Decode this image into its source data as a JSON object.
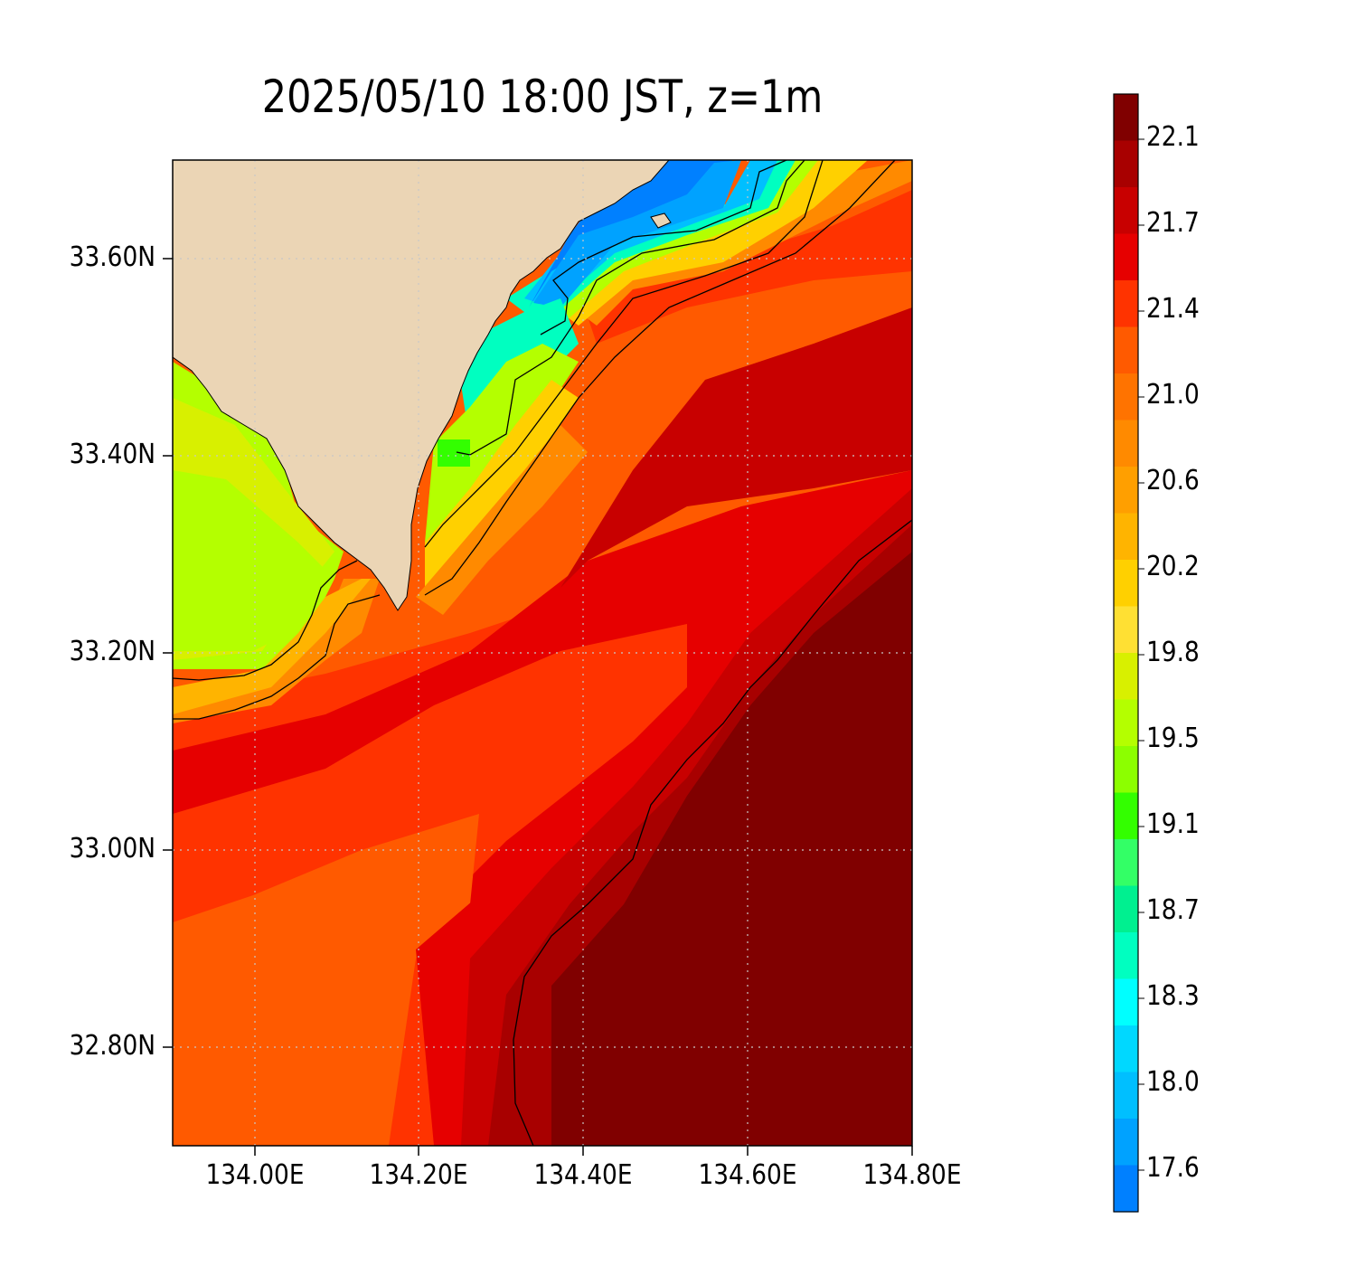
{
  "title": "2025/05/10 18:00 JST, z=1m",
  "map": {
    "lon_range": [
      133.9,
      134.8
    ],
    "lat_range": [
      32.7,
      33.7
    ],
    "gridlines": true,
    "lat_ticks": [
      {
        "value": 33.6,
        "label": "33.60N"
      },
      {
        "value": 33.4,
        "label": "33.40N"
      },
      {
        "value": 33.2,
        "label": "33.20N"
      },
      {
        "value": 33.0,
        "label": "33.00N"
      },
      {
        "value": 32.8,
        "label": "32.80N"
      }
    ],
    "lon_ticks": [
      {
        "value": 134.0,
        "label": "134.00E"
      },
      {
        "value": 134.2,
        "label": "134.20E"
      },
      {
        "value": 134.4,
        "label": "134.40E"
      },
      {
        "value": 134.6,
        "label": "134.60E"
      },
      {
        "value": 134.8,
        "label": "134.80E"
      }
    ],
    "land_color": "#ebd5b5",
    "contour_color": "#000000"
  },
  "colorbar": {
    "ticks": [
      "22.1",
      "21.7",
      "21.4",
      "21.0",
      "20.6",
      "20.2",
      "19.8",
      "19.5",
      "19.1",
      "18.7",
      "18.3",
      "18.0",
      "17.6"
    ],
    "colors_top_to_bottom": [
      "#800000",
      "#a80000",
      "#c80000",
      "#e60000",
      "#ff3300",
      "#ff5a00",
      "#ff7300",
      "#ff8a00",
      "#ff9f00",
      "#ffb400",
      "#ffd000",
      "#ffe033",
      "#d8f000",
      "#b4ff00",
      "#8cff00",
      "#33ff00",
      "#33ff66",
      "#00f090",
      "#00ffc0",
      "#00ffff",
      "#00d8ff",
      "#00bfff",
      "#00a2ff",
      "#0080ff"
    ]
  }
}
